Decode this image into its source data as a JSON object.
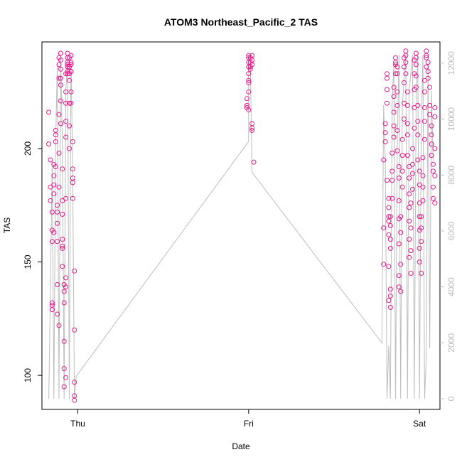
{
  "chart_data": {
    "type": "scatter",
    "title": "ATOM3 Northeast_Pacific_2 TAS",
    "xlabel": "Date",
    "ylabel": "TAS",
    "x_ticks": [
      "Thu",
      "Fri",
      "Sat"
    ],
    "x_tick_values": [
      0,
      1,
      2
    ],
    "xlim": [
      -0.21,
      2.12
    ],
    "y_ticks": [
      100,
      150,
      200
    ],
    "ylim": [
      85,
      247
    ],
    "y2_ticks": [
      0,
      2000,
      4000,
      6000,
      8000,
      10000,
      12000
    ],
    "y2lim": [
      -380,
      12760
    ],
    "grid": false,
    "legend": "none",
    "colors": {
      "points": "#e8178c",
      "altitude_line": "#bdbdbd",
      "axis": "#000000",
      "right_axis": "#bdbdbd"
    },
    "series": [
      {
        "points": [
          [
            -0.17,
            216
          ],
          [
            -0.17,
            202
          ],
          [
            -0.16,
            195
          ],
          [
            -0.16,
            183
          ],
          [
            -0.16,
            177
          ],
          [
            -0.15,
            172
          ],
          [
            -0.15,
            164
          ],
          [
            -0.15,
            159
          ],
          [
            -0.15,
            132
          ],
          [
            -0.15,
            129
          ],
          [
            -0.15,
            131
          ],
          [
            -0.14,
            163
          ],
          [
            -0.14,
            184
          ],
          [
            -0.14,
            180
          ],
          [
            -0.14,
            193
          ],
          [
            -0.14,
            188
          ],
          [
            -0.13,
            208
          ],
          [
            -0.13,
            206
          ],
          [
            -0.13,
            203
          ],
          [
            -0.13,
            192
          ],
          [
            -0.12,
            175
          ],
          [
            -0.12,
            172
          ],
          [
            -0.12,
            167
          ],
          [
            -0.12,
            159
          ],
          [
            -0.12,
            140
          ],
          [
            -0.12,
            127
          ],
          [
            -0.11,
            122
          ],
          [
            -0.11,
            183
          ],
          [
            -0.11,
            198
          ],
          [
            -0.11,
            215
          ],
          [
            -0.11,
            231
          ],
          [
            -0.11,
            237
          ],
          [
            -0.11,
            240
          ],
          [
            -0.1,
            242
          ],
          [
            -0.1,
            239
          ],
          [
            -0.1,
            235
          ],
          [
            -0.1,
            231
          ],
          [
            -0.1,
            228
          ],
          [
            -0.1,
            221
          ],
          [
            -0.1,
            211
          ],
          [
            -0.09,
            191
          ],
          [
            -0.09,
            177
          ],
          [
            -0.09,
            171
          ],
          [
            -0.09,
            160
          ],
          [
            -0.09,
            157
          ],
          [
            -0.09,
            156
          ],
          [
            -0.09,
            148
          ],
          [
            -0.08,
            140
          ],
          [
            -0.08,
            137
          ],
          [
            -0.08,
            132
          ],
          [
            -0.08,
            115
          ],
          [
            -0.08,
            103
          ],
          [
            -0.08,
            95
          ],
          [
            -0.07,
            99
          ],
          [
            -0.07,
            139
          ],
          [
            -0.07,
            143
          ],
          [
            -0.07,
            178
          ],
          [
            -0.07,
            205
          ],
          [
            -0.07,
            212
          ],
          [
            -0.07,
            220
          ],
          [
            -0.07,
            225
          ],
          [
            -0.07,
            233
          ],
          [
            -0.06,
            238
          ],
          [
            -0.06,
            242
          ],
          [
            -0.06,
            240
          ],
          [
            -0.06,
            236
          ],
          [
            -0.06,
            234
          ],
          [
            -0.06,
            233
          ],
          [
            -0.06,
            237
          ],
          [
            -0.05,
            240
          ],
          [
            -0.05,
            236
          ],
          [
            -0.05,
            233
          ],
          [
            -0.05,
            230
          ],
          [
            -0.05,
            220
          ],
          [
            -0.05,
            210
          ],
          [
            -0.05,
            200
          ],
          [
            -0.04,
            234
          ],
          [
            -0.04,
            238
          ],
          [
            -0.04,
            241
          ],
          [
            -0.04,
            237
          ],
          [
            -0.04,
            234
          ],
          [
            -0.04,
            225
          ],
          [
            -0.04,
            220
          ],
          [
            -0.03,
            203
          ],
          [
            -0.03,
            191
          ],
          [
            -0.03,
            187
          ],
          [
            -0.03,
            185
          ],
          [
            -0.03,
            178
          ],
          [
            -0.02,
            146
          ],
          [
            -0.02,
            120
          ],
          [
            -0.02,
            97
          ],
          [
            -0.02,
            91
          ],
          [
            -0.02,
            89
          ],
          [
            1.0,
            241
          ],
          [
            1.0,
            240
          ],
          [
            1.0,
            238
          ],
          [
            1.0,
            236
          ],
          [
            1.0,
            233
          ],
          [
            1.0,
            230
          ],
          [
            1.0,
            229
          ],
          [
            1.0,
            225
          ],
          [
            0.99,
            222
          ],
          [
            0.99,
            219
          ],
          [
            0.99,
            218
          ],
          [
            1.0,
            217
          ],
          [
            1.01,
            240
          ],
          [
            1.01,
            238
          ],
          [
            1.01,
            236
          ],
          [
            1.01,
            235
          ],
          [
            1.02,
            241
          ],
          [
            1.02,
            239
          ],
          [
            1.02,
            237
          ],
          [
            1.02,
            211
          ],
          [
            1.02,
            209
          ],
          [
            1.02,
            208
          ],
          [
            1.03,
            194
          ],
          [
            1.79,
            149
          ],
          [
            1.79,
            165
          ],
          [
            1.79,
            195
          ],
          [
            1.8,
            207
          ],
          [
            1.8,
            203
          ],
          [
            1.8,
            211
          ],
          [
            1.81,
            220
          ],
          [
            1.81,
            226
          ],
          [
            1.81,
            231
          ],
          [
            1.81,
            233
          ],
          [
            1.81,
            186
          ],
          [
            1.82,
            178
          ],
          [
            1.82,
            174
          ],
          [
            1.82,
            170
          ],
          [
            1.82,
            168
          ],
          [
            1.82,
            162
          ],
          [
            1.82,
            148
          ],
          [
            1.82,
            133
          ],
          [
            1.83,
            130
          ],
          [
            1.83,
            135
          ],
          [
            1.83,
            138
          ],
          [
            1.83,
            156
          ],
          [
            1.83,
            160
          ],
          [
            1.83,
            166
          ],
          [
            1.83,
            170
          ],
          [
            1.84,
            178
          ],
          [
            1.84,
            186
          ],
          [
            1.84,
            190
          ],
          [
            1.84,
            198
          ],
          [
            1.85,
            205
          ],
          [
            1.85,
            210
          ],
          [
            1.85,
            216
          ],
          [
            1.85,
            223
          ],
          [
            1.85,
            227
          ],
          [
            1.86,
            233
          ],
          [
            1.86,
            237
          ],
          [
            1.86,
            240
          ],
          [
            1.86,
            238
          ],
          [
            1.87,
            236
          ],
          [
            1.87,
            233
          ],
          [
            1.87,
            225
          ],
          [
            1.87,
            219
          ],
          [
            1.87,
            208
          ],
          [
            1.87,
            199
          ],
          [
            1.88,
            192
          ],
          [
            1.88,
            187
          ],
          [
            1.88,
            177
          ],
          [
            1.88,
            169
          ],
          [
            1.88,
            158
          ],
          [
            1.88,
            144
          ],
          [
            1.88,
            139
          ],
          [
            1.89,
            137
          ],
          [
            1.89,
            149
          ],
          [
            1.89,
            163
          ],
          [
            1.89,
            170
          ],
          [
            1.9,
            183
          ],
          [
            1.9,
            190
          ],
          [
            1.9,
            197
          ],
          [
            1.9,
            204
          ],
          [
            1.91,
            213
          ],
          [
            1.91,
            220
          ],
          [
            1.91,
            229
          ],
          [
            1.91,
            236
          ],
          [
            1.91,
            240
          ],
          [
            1.92,
            243
          ],
          [
            1.92,
            241
          ],
          [
            1.92,
            238
          ],
          [
            1.92,
            233
          ],
          [
            1.93,
            225
          ],
          [
            1.93,
            219
          ],
          [
            1.93,
            211
          ],
          [
            1.93,
            206
          ],
          [
            1.93,
            197
          ],
          [
            1.94,
            192
          ],
          [
            1.94,
            187
          ],
          [
            1.94,
            180
          ],
          [
            1.94,
            174
          ],
          [
            1.94,
            168
          ],
          [
            1.94,
            160
          ],
          [
            1.94,
            152
          ],
          [
            1.95,
            145
          ],
          [
            1.95,
            155
          ],
          [
            1.95,
            165
          ],
          [
            1.95,
            176
          ],
          [
            1.96,
            182
          ],
          [
            1.96,
            189
          ],
          [
            1.96,
            193
          ],
          [
            1.96,
            200
          ],
          [
            1.97,
            209
          ],
          [
            1.97,
            218
          ],
          [
            1.97,
            226
          ],
          [
            1.97,
            233
          ],
          [
            1.97,
            239
          ],
          [
            1.98,
            242
          ],
          [
            1.98,
            240
          ],
          [
            1.98,
            237
          ],
          [
            1.98,
            232
          ],
          [
            1.98,
            227
          ],
          [
            1.99,
            219
          ],
          [
            1.99,
            212
          ],
          [
            1.99,
            206
          ],
          [
            1.99,
            195
          ],
          [
            2.0,
            190
          ],
          [
            2.0,
            184
          ],
          [
            2.0,
            176
          ],
          [
            2.0,
            170
          ],
          [
            2.0,
            164
          ],
          [
            2.0,
            156
          ],
          [
            2.0,
            150
          ],
          [
            2.01,
            145
          ],
          [
            2.01,
            159
          ],
          [
            2.01,
            165
          ],
          [
            2.01,
            170
          ],
          [
            2.02,
            177
          ],
          [
            2.02,
            183
          ],
          [
            2.02,
            188
          ],
          [
            2.02,
            196
          ],
          [
            2.03,
            204
          ],
          [
            2.03,
            212
          ],
          [
            2.03,
            218
          ],
          [
            2.03,
            225
          ],
          [
            2.03,
            230
          ],
          [
            2.04,
            236
          ],
          [
            2.04,
            240
          ],
          [
            2.04,
            243
          ],
          [
            2.04,
            241
          ],
          [
            2.05,
            238
          ],
          [
            2.05,
            234
          ],
          [
            2.05,
            231
          ],
          [
            2.06,
            227
          ],
          [
            2.06,
            219
          ],
          [
            2.06,
            215
          ],
          [
            2.07,
            210
          ],
          [
            2.07,
            206
          ],
          [
            2.07,
            202
          ],
          [
            2.07,
            197
          ],
          [
            2.08,
            193
          ],
          [
            2.08,
            190
          ],
          [
            2.08,
            183
          ],
          [
            2.08,
            178
          ],
          [
            2.09,
            176
          ],
          [
            2.09,
            188
          ],
          [
            2.09,
            200
          ],
          [
            2.09,
            214
          ],
          [
            2.09,
            218
          ]
        ]
      },
      {
        "axis": "right",
        "points": [
          [
            -0.17,
            0
          ],
          [
            -0.16,
            4000
          ],
          [
            -0.15,
            8500
          ],
          [
            -0.14,
            0
          ],
          [
            -0.13,
            9000
          ],
          [
            -0.12,
            12000
          ],
          [
            -0.11,
            0
          ],
          [
            -0.1,
            12200
          ],
          [
            -0.09,
            9000
          ],
          [
            -0.08,
            0
          ],
          [
            -0.07,
            11000
          ],
          [
            -0.06,
            12200
          ],
          [
            -0.05,
            0
          ],
          [
            -0.04,
            12300
          ],
          [
            -0.03,
            8000
          ],
          [
            -0.02,
            0
          ],
          [
            -0.01,
            800
          ],
          [
            1.0,
            9200
          ],
          [
            1.0,
            12300
          ],
          [
            1.01,
            12000
          ],
          [
            1.02,
            8100
          ],
          [
            1.78,
            2000
          ],
          [
            1.79,
            10500
          ],
          [
            1.8,
            8500
          ],
          [
            1.81,
            0
          ],
          [
            1.82,
            1900
          ],
          [
            1.83,
            0
          ],
          [
            1.84,
            10500
          ],
          [
            1.85,
            12000
          ],
          [
            1.86,
            0
          ],
          [
            1.87,
            9000
          ],
          [
            1.88,
            12300
          ],
          [
            1.89,
            0
          ],
          [
            1.9,
            10500
          ],
          [
            1.92,
            12300
          ],
          [
            1.93,
            0
          ],
          [
            1.94,
            11000
          ],
          [
            1.96,
            12300
          ],
          [
            1.97,
            0
          ],
          [
            1.98,
            10500
          ],
          [
            1.99,
            12300
          ],
          [
            2.0,
            0
          ],
          [
            2.01,
            9500
          ],
          [
            2.02,
            12300
          ],
          [
            2.03,
            0
          ],
          [
            2.04,
            1500
          ],
          [
            2.05,
            12000
          ],
          [
            2.06,
            1800
          ],
          [
            2.07,
            11000
          ],
          [
            2.08,
            8500
          ]
        ]
      }
    ]
  }
}
